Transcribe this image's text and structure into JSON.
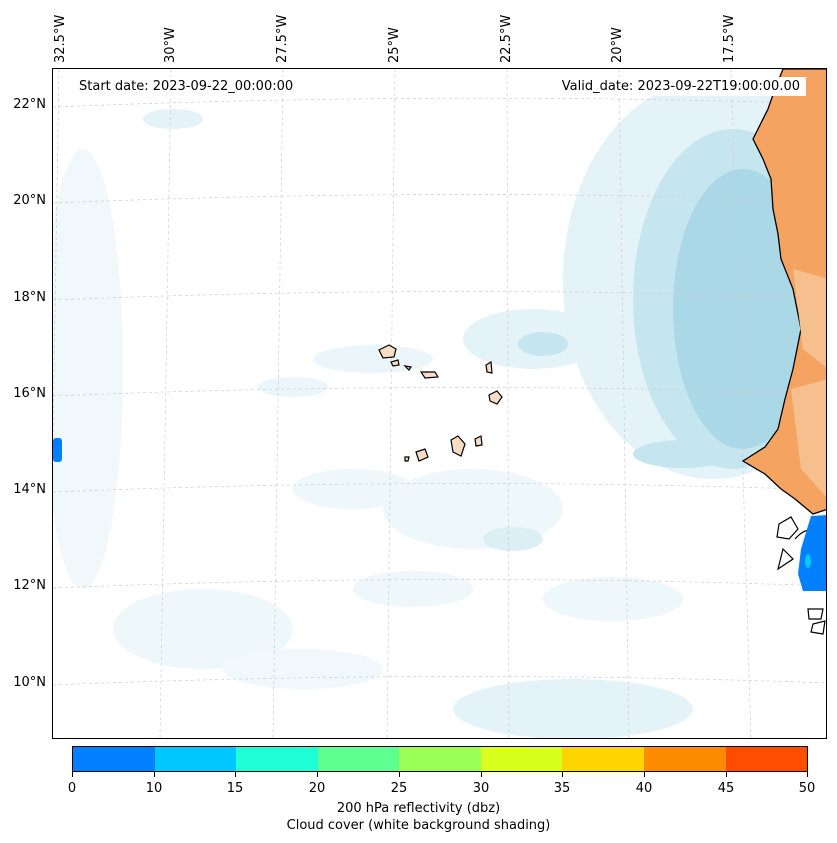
{
  "map": {
    "start_date_text": "Start date: 2023-09-22_00:00:00",
    "valid_date_text": "Valid_date: 2023-09-22T19:00:00.00",
    "lon_labels": [
      "32.5°W",
      "30°W",
      "27.5°W",
      "25°W",
      "22.5°W",
      "20°W",
      "17.5°W"
    ],
    "lat_labels": [
      "22°N",
      "20°N",
      "18°N",
      "16°N",
      "14°N",
      "12°N",
      "10°N"
    ],
    "colors": {
      "cloud_light": "#e4f3f8",
      "cloud_mid": "#c6e6ef",
      "cloud_dense": "#aad8e6",
      "land_temp": "#f4a460",
      "land_light": "#f6c08e",
      "island_fill": "#f9dcc4",
      "reflectivity_low": "#0080ff",
      "coastline": "#000000",
      "grid": "#cccccc"
    }
  },
  "colorbar": {
    "title": "200 hPa reflectivity (dbz)",
    "subtitle": "Cloud cover (white background shading)",
    "ticks": [
      "0",
      "10",
      "15",
      "20",
      "25",
      "30",
      "35",
      "40",
      "45",
      "50"
    ],
    "colors": [
      "#0080ff",
      "#00c8ff",
      "#1effd8",
      "#5eff8e",
      "#9cff55",
      "#d8ff1e",
      "#ffd500",
      "#ff8c00",
      "#ff4d00"
    ]
  }
}
